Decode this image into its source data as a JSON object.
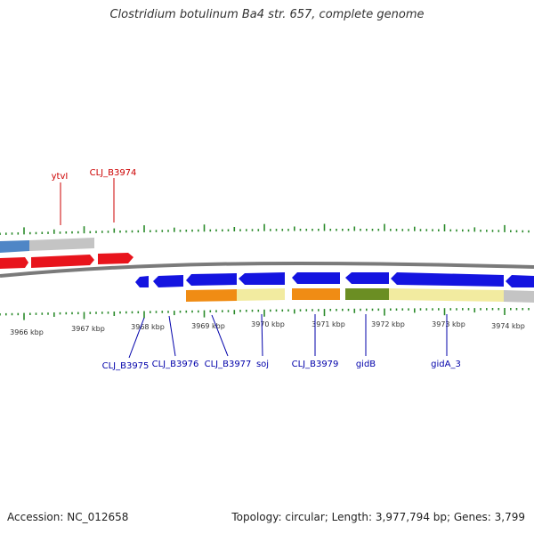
{
  "title": "Clostridium botulinum Ba4 str. 657, complete genome",
  "footer": {
    "accession": "Accession: NC_012658",
    "stats": "Topology: circular; Length: 3,977,794 bp; Genes: 3,799"
  },
  "colors": {
    "forward_cds": "#e8141c",
    "reverse_cds": "#1414e0",
    "backbone": "#777777",
    "tick": "#2a8a2a",
    "label_forward": "#cc0000",
    "label_reverse": "#0000aa",
    "cog_blue": "#4f86c6",
    "cog_gray": "#c4c4c4",
    "cog_orange": "#f08c14",
    "cog_yellow": "#f2eba0",
    "cog_green": "#6b8e23"
  },
  "scale_labels": [
    "3966 kbp",
    "3967 kbp",
    "3968 kbp",
    "3969 kbp",
    "3970 kbp",
    "3971 kbp",
    "3972 kbp",
    "3973 kbp",
    "3974 kbp"
  ],
  "forward_genes": [
    "ytvI",
    "CLJ_B3974"
  ],
  "reverse_genes": [
    "CLJ_B3975",
    "CLJ_B3976",
    "CLJ_B3977",
    "soj",
    "CLJ_B3979",
    "gidB",
    "gidA_3"
  ]
}
